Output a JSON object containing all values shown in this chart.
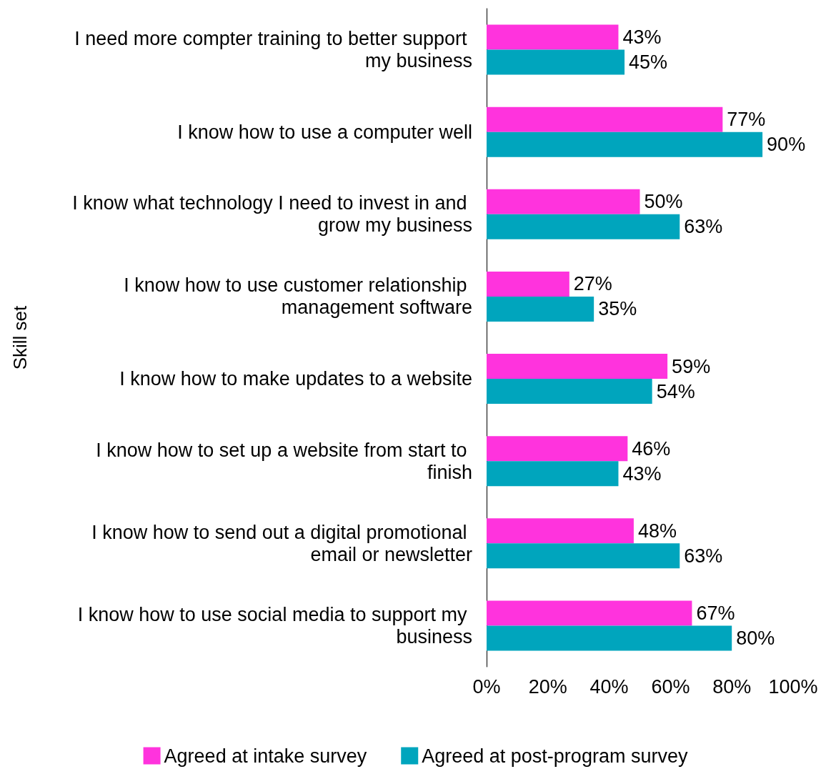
{
  "chart_data": {
    "type": "bar",
    "orientation": "horizontal",
    "ylabel": "Skill set",
    "categories": [
      "I need more compter training to better support my business",
      "I know how to use a computer well",
      "I know what technology I need to invest in and grow my business",
      "I know how to use customer relationship management software",
      "I know how to make updates to a website",
      "I know how to set up a website from start to finish",
      "I know how to send out a digital promotional email or newsletter",
      "I know how to use social media to support my business"
    ],
    "series": [
      {
        "name": "Agreed at intake survey",
        "color": "#ff33dd",
        "values": [
          43,
          77,
          50,
          27,
          59,
          46,
          48,
          67
        ],
        "value_labels": [
          "43%",
          "77%",
          "50%",
          "27%",
          "59%",
          "46%",
          "48%",
          "67%"
        ]
      },
      {
        "name": "Agreed at post-program survey",
        "color": "#00a5bd",
        "values": [
          45,
          90,
          63,
          35,
          54,
          43,
          63,
          80
        ],
        "value_labels": [
          "45%",
          "90%",
          "63%",
          "35%",
          "54%",
          "43%",
          "63%",
          "80%"
        ]
      }
    ],
    "xlim": [
      0,
      100
    ],
    "xticks": [
      {
        "value": 0,
        "label": "0%"
      },
      {
        "value": 20,
        "label": "20%"
      },
      {
        "value": 40,
        "label": "40%"
      },
      {
        "value": 60,
        "label": "60%"
      },
      {
        "value": 80,
        "label": "80%"
      },
      {
        "value": 100,
        "label": "100%"
      }
    ],
    "grid": false,
    "legend": "bottom"
  }
}
